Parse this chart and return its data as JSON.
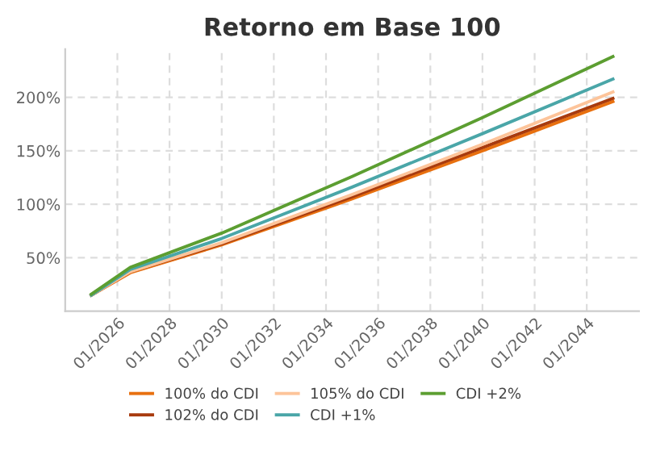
{
  "chart_data": {
    "type": "line",
    "title": "Retorno em Base 100",
    "x": [
      "2025-01",
      "2026-07",
      "2030-01",
      "2035-01",
      "2040-01",
      "2045-01"
    ],
    "series": [
      {
        "name": "100% do CDI",
        "color": "#e8700f",
        "values": [
          15,
          36,
          62,
          105,
          150,
          196
        ]
      },
      {
        "name": "102% do CDI",
        "color": "#a83b0e",
        "values": [
          15,
          37,
          63,
          107,
          153,
          199
        ]
      },
      {
        "name": "105% do CDI",
        "color": "#fdc49a",
        "values": [
          15,
          37,
          64,
          109,
          156,
          205
        ]
      },
      {
        "name": "CDI +1%",
        "color": "#4aa6a8",
        "values": [
          15,
          39,
          68,
          116,
          166,
          217
        ]
      },
      {
        "name": "CDI +2%",
        "color": "#5c9e31",
        "values": [
          16,
          41,
          73,
          126,
          181,
          238
        ]
      }
    ],
    "xlim": [
      "2024-01",
      "2046-01"
    ],
    "xticks": [
      {
        "value": "2026-01",
        "label": "01/2026"
      },
      {
        "value": "2028-01",
        "label": "01/2028"
      },
      {
        "value": "2030-01",
        "label": "01/2030"
      },
      {
        "value": "2032-01",
        "label": "01/2032"
      },
      {
        "value": "2034-01",
        "label": "01/2034"
      },
      {
        "value": "2036-01",
        "label": "01/2036"
      },
      {
        "value": "2038-01",
        "label": "01/2038"
      },
      {
        "value": "2040-01",
        "label": "01/2040"
      },
      {
        "value": "2042-01",
        "label": "01/2042"
      },
      {
        "value": "2044-01",
        "label": "01/2044"
      }
    ],
    "ylim": [
      0,
      245
    ],
    "yticks": [
      {
        "value": 50,
        "label": "50%"
      },
      {
        "value": 100,
        "label": "100%"
      },
      {
        "value": 150,
        "label": "150%"
      },
      {
        "value": 200,
        "label": "200%"
      }
    ],
    "grid": true,
    "legend": "bottom",
    "marker": "none",
    "line_style": "solid"
  }
}
